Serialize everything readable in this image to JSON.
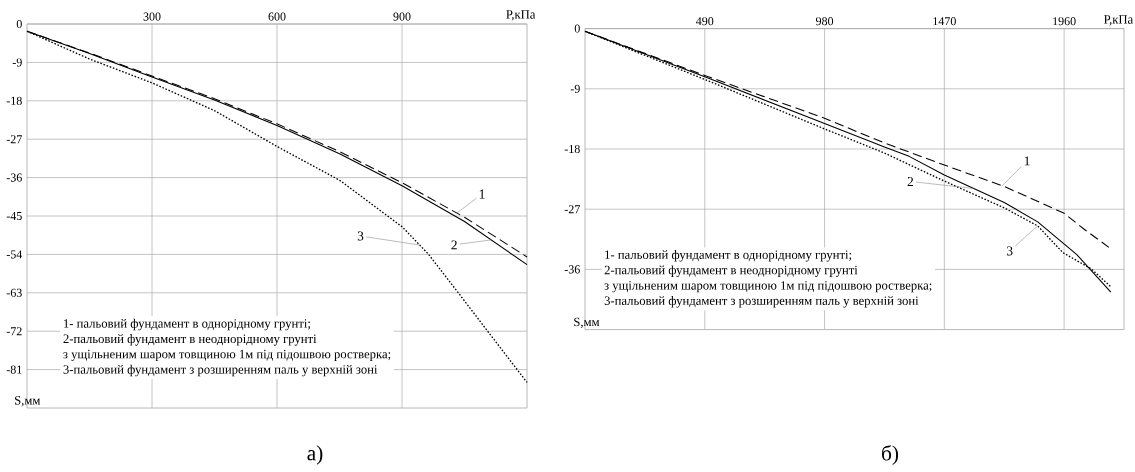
{
  "chart_data": [
    {
      "type": "line",
      "xlabel": "Р,кПа",
      "ylabel": "S,мм",
      "xlim": [
        0,
        1200
      ],
      "ylim": [
        -90,
        0
      ],
      "xticks": [
        300,
        600,
        900
      ],
      "yticks": [
        0,
        -9,
        -18,
        -27,
        -36,
        -45,
        -54,
        -63,
        -72,
        -81
      ],
      "grid": true,
      "series": [
        {
          "color": "#000000",
          "line_style": "dashed",
          "x": [
            0,
            150,
            300,
            450,
            600,
            750,
            900,
            1050,
            1200
          ],
          "values": [
            -1.7,
            -6.8,
            -12.2,
            -17.5,
            -23.4,
            -29.9,
            -37.2,
            -45.3,
            -54.6
          ]
        },
        {
          "color": "#000000",
          "line_style": "solid",
          "x": [
            0,
            150,
            300,
            450,
            600,
            750,
            900,
            1050,
            1200
          ],
          "values": [
            -1.7,
            -6.9,
            -12.4,
            -17.8,
            -23.8,
            -30.4,
            -37.9,
            -46.3,
            -56.4
          ]
        },
        {
          "color": "#000000",
          "line_style": "dotted",
          "x": [
            0,
            150,
            300,
            450,
            600,
            750,
            900,
            963,
            1032,
            1100,
            1200
          ],
          "values": [
            -1.7,
            -8.2,
            -13.8,
            -20.3,
            -28.7,
            -36.6,
            -47.5,
            -53.9,
            -62.6,
            -71.3,
            -84.0
          ]
        }
      ],
      "annotations": [
        {
          "text": "1",
          "x": 1032,
          "y": -44.3
        },
        {
          "text": "2",
          "x": 1114,
          "y": -50.6
        },
        {
          "text": "3",
          "x": 942,
          "y": -51.8
        },
        "1- пальовий фундамент в однорідному грунті;",
        "2-пальовий фундамент в неоднорідному грунті",
        "з ущільненим шаром товщиною 1м під підошвою ростверка;",
        "3-пальовий фундамент з розширенням паль у верхній зоні",
        "а)"
      ]
    },
    {
      "type": "line",
      "xlabel": "Р,кПа",
      "ylabel": "S,мм",
      "xlim": [
        0,
        2205
      ],
      "ylim": [
        -45,
        0
      ],
      "xticks": [
        490,
        980,
        1470,
        1960
      ],
      "yticks": [
        0,
        -9,
        -18,
        -27,
        -36
      ],
      "grid": true,
      "series": [
        {
          "color": "#000000",
          "line_style": "dashed",
          "x": [
            0,
            490,
            980,
            1225,
            1470,
            1715,
            1960,
            2042,
            2143
          ],
          "values": [
            -0.4,
            -7.0,
            -13.4,
            -17.1,
            -20.4,
            -23.6,
            -27.6,
            -30.0,
            -32.7
          ]
        },
        {
          "color": "#000000",
          "line_style": "solid",
          "x": [
            0,
            490,
            980,
            1225,
            1326,
            1470,
            1715,
            1852,
            2012,
            2151
          ],
          "values": [
            -0.4,
            -7.2,
            -14.2,
            -17.7,
            -19.1,
            -21.9,
            -26.0,
            -28.9,
            -33.8,
            -39.4
          ]
        },
        {
          "color": "#000000",
          "line_style": "dotted",
          "x": [
            0,
            490,
            980,
            1225,
            1470,
            1715,
            1852,
            1955,
            2070,
            2151
          ],
          "values": [
            -0.4,
            -7.6,
            -15.0,
            -18.6,
            -22.8,
            -26.8,
            -29.5,
            -33.5,
            -35.9,
            -38.6
          ]
        }
      ],
      "annotations": [
        {
          "text": "1",
          "x": 1706,
          "y": -23.5
        },
        {
          "text": "2",
          "x": 1589,
          "y": -23.9
        },
        {
          "text": "3",
          "x": 1852,
          "y": -29.5
        },
        "1- пальовий фундамент в однорідному грунті;",
        "2-пальовий фундамент в неоднорідному грунті",
        "з ущільненим шаром товщиною 1м під підошвою ростверка;",
        "3-пальовий фундамент з розширенням паль у верхній зоні",
        "б)"
      ]
    }
  ]
}
